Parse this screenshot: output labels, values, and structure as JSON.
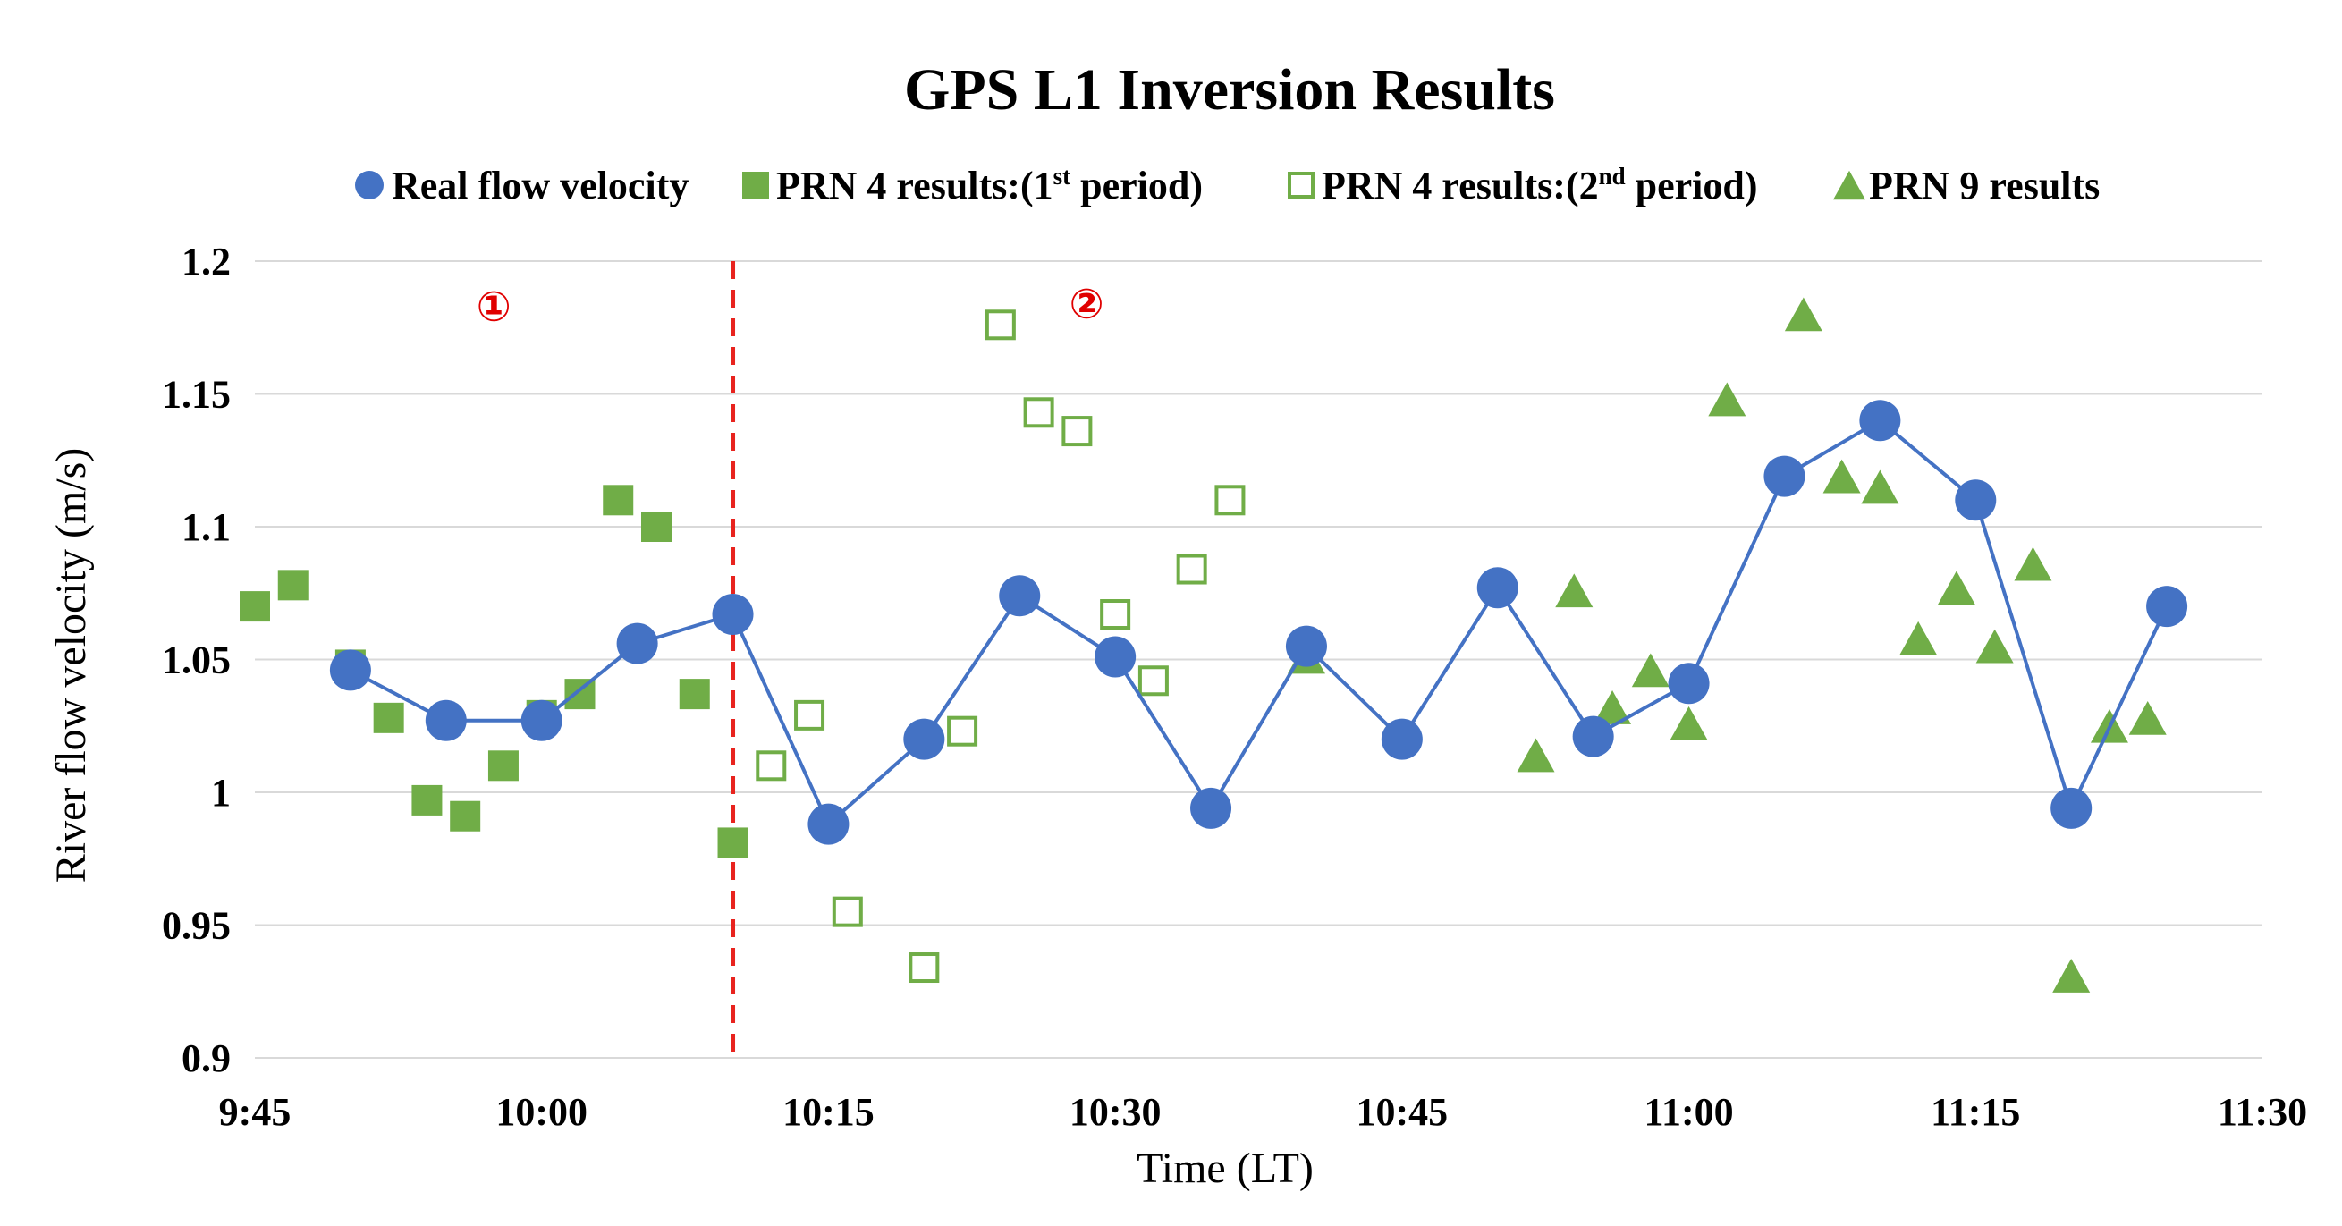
{
  "chart_data": {
    "type": "scatter",
    "title": "GPS L1 Inversion Results",
    "xlabel": "Time (LT)",
    "ylabel": "River flow velocity (m/s)",
    "x_unit": "minutes since 9:45",
    "xlim": [
      0,
      105
    ],
    "ylim": [
      0.9,
      1.2
    ],
    "x_ticks": [
      {
        "value": 0,
        "label": "9:45"
      },
      {
        "value": 15,
        "label": "10:00"
      },
      {
        "value": 30,
        "label": "10:15"
      },
      {
        "value": 45,
        "label": "10:30"
      },
      {
        "value": 60,
        "label": "10:45"
      },
      {
        "value": 75,
        "label": "11:00"
      },
      {
        "value": 90,
        "label": "11:15"
      },
      {
        "value": 105,
        "label": "11:30"
      }
    ],
    "y_ticks": [
      {
        "value": 0.9,
        "label": "0.9"
      },
      {
        "value": 0.95,
        "label": "0.95"
      },
      {
        "value": 1.0,
        "label": "1"
      },
      {
        "value": 1.05,
        "label": "1.05"
      },
      {
        "value": 1.1,
        "label": "1.1"
      },
      {
        "value": 1.15,
        "label": "1.15"
      },
      {
        "value": 1.2,
        "label": "1.2"
      }
    ],
    "grid": "horizontal",
    "legend_position": "top",
    "divider": {
      "x": 25,
      "color": "#e8231e"
    },
    "region_labels": [
      {
        "text": "①",
        "x": 12.5,
        "y": 1.183
      },
      {
        "text": "②",
        "x": 43.5,
        "y": 1.184
      }
    ],
    "series": [
      {
        "name": "Real flow velocity",
        "marker": "circle",
        "line": true,
        "color": "#4472c4",
        "legend_parts": [
          {
            "text": "Real flow velocity"
          }
        ],
        "x": [
          5,
          10,
          15,
          20,
          25,
          30,
          35,
          40,
          45,
          50,
          55,
          60,
          65,
          70,
          75,
          80,
          85,
          90,
          95,
          100
        ],
        "y": [
          1.046,
          1.027,
          1.027,
          1.056,
          1.067,
          0.988,
          1.02,
          1.074,
          1.051,
          0.994,
          1.055,
          1.02,
          1.077,
          1.021,
          1.041,
          1.119,
          1.14,
          1.11,
          0.994,
          1.07
        ]
      },
      {
        "name": "PRN 4 results:(1st period)",
        "marker": "square",
        "fill": "solid",
        "color": "#70ad47",
        "legend_parts": [
          {
            "text": "PRN 4 results:(1"
          },
          {
            "text": "st",
            "sup": true
          },
          {
            "text": "  period)"
          }
        ],
        "x": [
          0,
          2,
          5,
          7,
          9,
          11,
          13,
          15,
          17,
          19,
          21,
          23,
          25
        ],
        "y": [
          1.07,
          1.078,
          1.048,
          1.028,
          0.997,
          0.991,
          1.01,
          1.029,
          1.037,
          1.11,
          1.1,
          1.037,
          0.981
        ]
      },
      {
        "name": "PRN 4 results:(2nd period)",
        "marker": "square",
        "fill": "hollow",
        "color": "#70ad47",
        "legend_parts": [
          {
            "text": "PRN 4 results:(2"
          },
          {
            "text": "nd",
            "sup": true
          },
          {
            "text": "  period)"
          }
        ],
        "x": [
          27,
          29,
          31,
          35,
          37,
          39,
          41,
          43,
          45,
          47,
          49,
          51
        ],
        "y": [
          1.01,
          1.029,
          0.955,
          0.934,
          1.023,
          1.176,
          1.143,
          1.136,
          1.067,
          1.042,
          1.084,
          1.11
        ]
      },
      {
        "name": "PRN 9 results",
        "marker": "triangle",
        "fill": "solid",
        "color": "#70ad47",
        "legend_parts": [
          {
            "text": "PRN 9 results"
          }
        ],
        "x": [
          55,
          67,
          69,
          71,
          73,
          75,
          77,
          81,
          83,
          85,
          87,
          89,
          91,
          93,
          95,
          97,
          99
        ],
        "y": [
          1.051,
          1.014,
          1.076,
          1.032,
          1.046,
          1.026,
          1.148,
          1.18,
          1.119,
          1.115,
          1.058,
          1.077,
          1.055,
          1.086,
          0.931,
          1.025,
          1.028
        ]
      }
    ]
  }
}
